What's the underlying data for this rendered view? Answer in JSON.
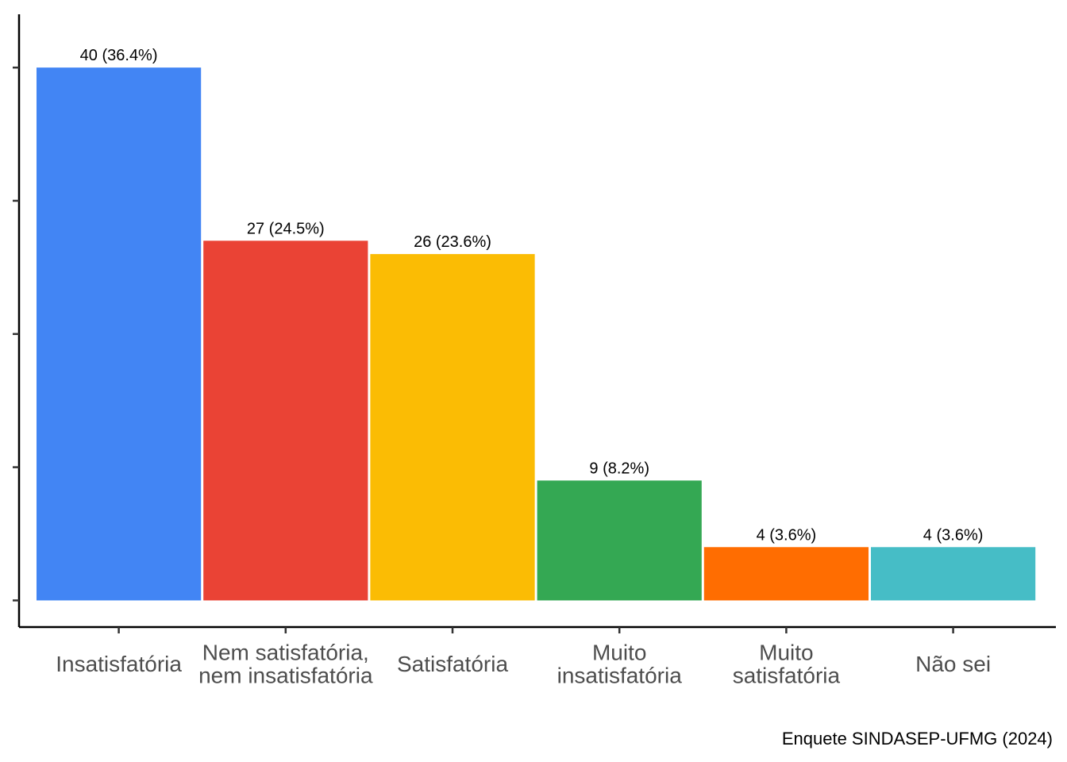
{
  "chart_data": {
    "type": "bar",
    "categories": [
      "Insatisfatória",
      "Nem satisfatória,\nnem insatisfatória",
      "Satisfatória",
      "Muito\ninsatisfatória",
      "Muito\nsatisfatória",
      "Não sei"
    ],
    "values": [
      40,
      27,
      26,
      9,
      4,
      4
    ],
    "data_labels": [
      "40 (36.4%)",
      "27 (24.5%)",
      "26 (23.6%)",
      "9 (8.2%)",
      "4 (3.6%)",
      "4 (3.6%)"
    ],
    "colors": [
      "#4285f4",
      "#ea4335",
      "#fbbc04",
      "#34a853",
      "#ff6d01",
      "#46bdc6"
    ],
    "ylim": [
      -2,
      44
    ],
    "y_ticks": [
      0,
      10,
      20,
      30,
      40
    ],
    "y_tick_labels_shown": false,
    "title": "",
    "xlabel": "",
    "ylabel": "",
    "grid": false,
    "legend": "none",
    "caption": "Enquete SINDASEP-UFMG (2024)"
  }
}
